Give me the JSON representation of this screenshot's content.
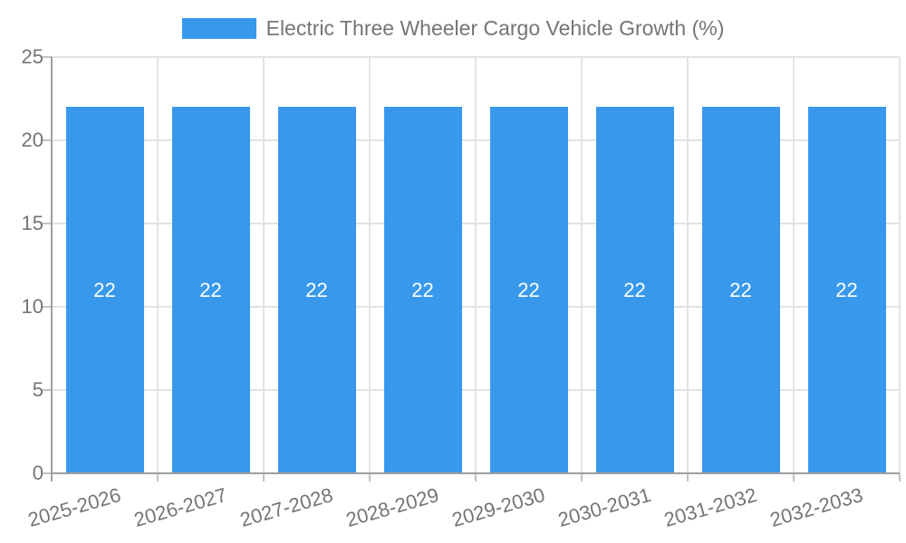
{
  "chart_data": {
    "type": "bar",
    "title": "",
    "legend": {
      "label": "Electric Three Wheeler Cargo Vehicle Growth (%)",
      "position": "top"
    },
    "categories": [
      "2025-2026",
      "2026-2027",
      "2027-2028",
      "2028-2029",
      "2029-2030",
      "2030-2031",
      "2031-2032",
      "2032-2033"
    ],
    "series": [
      {
        "name": "Electric Three Wheeler Cargo Vehicle Growth (%)",
        "values": [
          22,
          22,
          22,
          22,
          22,
          22,
          22,
          22
        ]
      }
    ],
    "value_labels": [
      "22",
      "22",
      "22",
      "22",
      "22",
      "22",
      "22",
      "22"
    ],
    "xlabel": "",
    "ylabel": "",
    "ylim": [
      0,
      25
    ],
    "yticks": [
      0,
      5,
      10,
      15,
      20,
      25
    ],
    "grid": true,
    "x_label_rotation_deg": -16,
    "colors": {
      "bar": "#3899EC",
      "grid": "#E3E3E3",
      "axis": "#9E9E9E",
      "tick": "#C2C2C2",
      "text": "#757575",
      "value_label": "#FFFFFF",
      "background": "#FFFFFF"
    }
  }
}
